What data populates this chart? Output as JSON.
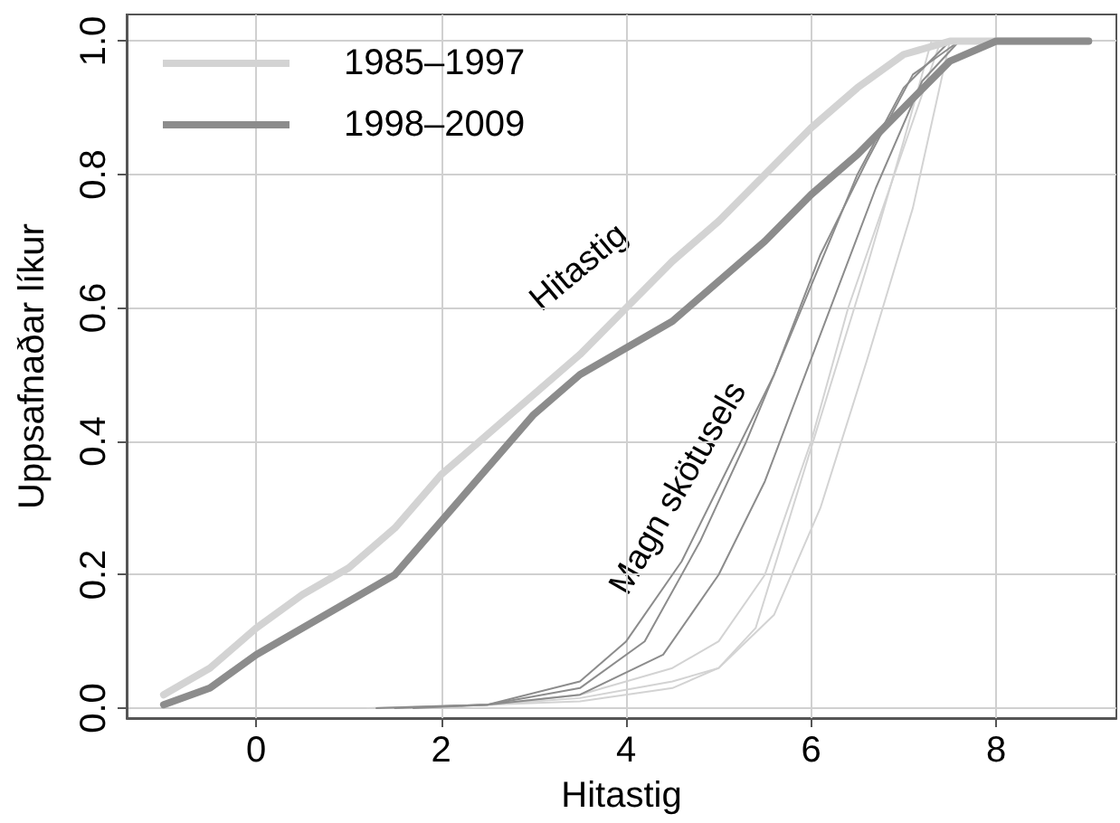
{
  "chart_data": {
    "type": "line",
    "xlabel": "Hitastig",
    "ylabel": "Uppsafnaðar líkur",
    "xlim": [
      -1.4,
      9.3
    ],
    "xticks": [
      0,
      2,
      4,
      6,
      8
    ],
    "ylim": [
      -0.015,
      1.04
    ],
    "yticks": [
      {
        "value": 0,
        "label": "0.0"
      },
      0.2,
      0.4,
      0.6,
      0.8,
      {
        "value": 1,
        "label": "1.0"
      }
    ],
    "grid": true,
    "legend": "top left",
    "marker": "none",
    "line_style": "solid",
    "annotations": [
      "Hitastig",
      "Magn skötusels"
    ],
    "series": [
      {
        "color": "#d3d3d3",
        "x": [
          1.2,
          2.5,
          3.5,
          4.5,
          5.0,
          5.4,
          5.8,
          6.2,
          6.6,
          7.0,
          7.3,
          7.8
        ],
        "values": [
          0,
          0.005,
          0.01,
          0.03,
          0.06,
          0.12,
          0.3,
          0.48,
          0.66,
          0.85,
          1.0,
          1.0
        ]
      },
      {
        "color": "#d3d3d3",
        "x": [
          1.4,
          2.5,
          3.5,
          4.5,
          5.0,
          5.5,
          6.0,
          6.4,
          6.9,
          7.4,
          8.2
        ],
        "values": [
          0,
          0.005,
          0.02,
          0.06,
          0.1,
          0.2,
          0.4,
          0.6,
          0.8,
          1.0,
          1.0
        ]
      },
      {
        "color": "#d3d3d3",
        "x": [
          1.6,
          2.5,
          3.5,
          4.5,
          5.0,
          5.6,
          6.1,
          6.6,
          7.1,
          7.5,
          8.6
        ],
        "values": [
          0,
          0.005,
          0.015,
          0.04,
          0.06,
          0.14,
          0.3,
          0.52,
          0.75,
          1.0,
          1.0
        ]
      },
      {
        "color": "#8c8c8c",
        "x": [
          1.3,
          2.5,
          3.5,
          4.0,
          4.6,
          5.1,
          5.6,
          6.1,
          6.6,
          7.1,
          7.6,
          8.0
        ],
        "values": [
          0,
          0.005,
          0.04,
          0.1,
          0.22,
          0.36,
          0.5,
          0.68,
          0.82,
          0.95,
          1.0,
          1.0
        ]
      },
      {
        "color": "#8c8c8c",
        "x": [
          1.5,
          2.5,
          3.5,
          4.2,
          4.8,
          5.3,
          5.9,
          6.5,
          7.0,
          7.5,
          8.4
        ],
        "values": [
          0,
          0.005,
          0.03,
          0.1,
          0.25,
          0.4,
          0.6,
          0.8,
          0.93,
          1.0,
          1.0
        ]
      },
      {
        "color": "#8c8c8c",
        "x": [
          1.7,
          2.5,
          3.5,
          4.4,
          5.0,
          5.5,
          6.1,
          6.7,
          7.2,
          7.6,
          8.8
        ],
        "values": [
          0,
          0.005,
          0.02,
          0.08,
          0.2,
          0.34,
          0.56,
          0.78,
          0.94,
          1.0,
          1.0
        ]
      },
      {
        "name": "1985–1997",
        "color": "#d3d3d3",
        "x": [
          -1,
          -0.5,
          0,
          0.5,
          1,
          1.5,
          2,
          2.5,
          3,
          3.5,
          4,
          4.5,
          5,
          5.5,
          6,
          6.5,
          7,
          7.5,
          9
        ],
        "values": [
          0.02,
          0.06,
          0.12,
          0.17,
          0.21,
          0.27,
          0.35,
          0.41,
          0.47,
          0.53,
          0.6,
          0.67,
          0.73,
          0.8,
          0.87,
          0.93,
          0.98,
          1.0,
          1.0
        ]
      },
      {
        "name": "1998–2009",
        "color": "#8c8c8c",
        "x": [
          -1,
          -0.5,
          0,
          0.5,
          1,
          1.5,
          2,
          2.5,
          3,
          3.5,
          4,
          4.5,
          5,
          5.5,
          6,
          6.5,
          7,
          7.5,
          8,
          9
        ],
        "values": [
          0.005,
          0.03,
          0.08,
          0.12,
          0.16,
          0.2,
          0.28,
          0.36,
          0.44,
          0.5,
          0.54,
          0.58,
          0.64,
          0.7,
          0.77,
          0.83,
          0.9,
          0.97,
          1.0,
          1.0
        ]
      }
    ]
  }
}
